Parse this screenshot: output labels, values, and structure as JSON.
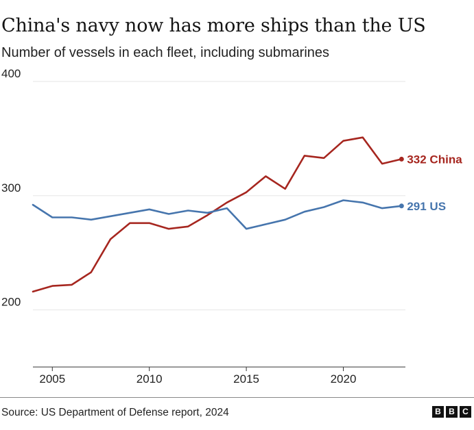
{
  "header": {
    "title": "China's navy now has more ships than the US",
    "subtitle": "Number of vessels in each fleet, including submarines"
  },
  "footer": {
    "source": "Source: US Department of Defense report, 2024",
    "logo_letters": [
      "B",
      "B",
      "C"
    ]
  },
  "colors": {
    "china": "#a6261f",
    "us": "#4675ad",
    "grid": "#e6e6e6",
    "axis": "#333333",
    "text": "#222222"
  },
  "chart_data": {
    "type": "line",
    "title": "",
    "xlabel": "",
    "ylabel": "",
    "x": [
      2004,
      2005,
      2006,
      2007,
      2008,
      2009,
      2010,
      2011,
      2012,
      2013,
      2014,
      2015,
      2016,
      2017,
      2018,
      2019,
      2020,
      2021,
      2022,
      2023
    ],
    "xlim": [
      2004,
      2023.2
    ],
    "ylim": [
      150,
      400
    ],
    "xticks": [
      2005,
      2010,
      2015,
      2020
    ],
    "yticks": [
      200,
      300,
      400
    ],
    "grid": true,
    "legend": "end-of-line labels",
    "series": [
      {
        "name": "China",
        "end_label": "332 China",
        "color": "#a6261f",
        "values": [
          216,
          221,
          222,
          233,
          262,
          276,
          276,
          271,
          273,
          283,
          294,
          303,
          317,
          306,
          335,
          333,
          348,
          351,
          328,
          332
        ]
      },
      {
        "name": "US",
        "end_label": "291 US",
        "color": "#4675ad",
        "values": [
          292,
          281,
          281,
          279,
          282,
          285,
          288,
          284,
          287,
          285,
          289,
          271,
          275,
          279,
          286,
          290,
          296,
          294,
          289,
          291
        ]
      }
    ]
  }
}
